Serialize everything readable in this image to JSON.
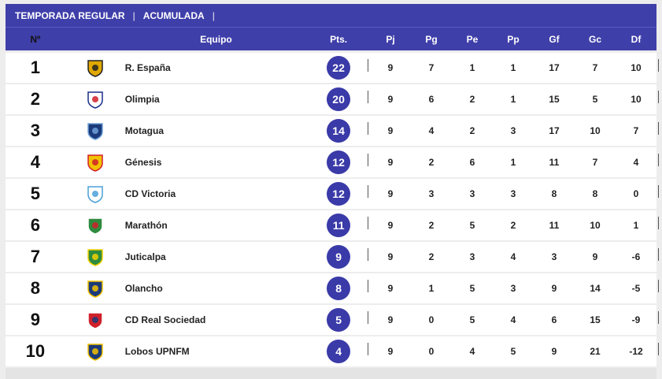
{
  "tabs": [
    "TEMPORADA REGULAR",
    "ACUMULADA"
  ],
  "columns": {
    "pos": "Nº",
    "team": "Equipo",
    "pts": "Pts.",
    "pj": "Pj",
    "pg": "Pg",
    "pe": "Pe",
    "pp": "Pp",
    "gf": "Gf",
    "gc": "Gc",
    "df": "Df"
  },
  "rows": [
    {
      "pos": "1",
      "team": "R. España",
      "logo": "real-espana-crest",
      "pts": "22",
      "pj": "9",
      "pg": "7",
      "pe": "1",
      "pp": "1",
      "gf": "17",
      "gc": "7",
      "df": "10"
    },
    {
      "pos": "2",
      "team": "Olimpia",
      "logo": "olimpia-crest",
      "pts": "20",
      "pj": "9",
      "pg": "6",
      "pe": "2",
      "pp": "1",
      "gf": "15",
      "gc": "5",
      "df": "10"
    },
    {
      "pos": "3",
      "team": "Motagua",
      "logo": "motagua-crest",
      "pts": "14",
      "pj": "9",
      "pg": "4",
      "pe": "2",
      "pp": "3",
      "gf": "17",
      "gc": "10",
      "df": "7"
    },
    {
      "pos": "4",
      "team": "Génesis",
      "logo": "genesis-crest",
      "pts": "12",
      "pj": "9",
      "pg": "2",
      "pe": "6",
      "pp": "1",
      "gf": "11",
      "gc": "7",
      "df": "4"
    },
    {
      "pos": "5",
      "team": "CD Victoria",
      "logo": "victoria-crest",
      "pts": "12",
      "pj": "9",
      "pg": "3",
      "pe": "3",
      "pp": "3",
      "gf": "8",
      "gc": "8",
      "df": "0"
    },
    {
      "pos": "6",
      "team": "Marathón",
      "logo": "marathon-crest",
      "pts": "11",
      "pj": "9",
      "pg": "2",
      "pe": "5",
      "pp": "2",
      "gf": "11",
      "gc": "10",
      "df": "1"
    },
    {
      "pos": "7",
      "team": "Juticalpa",
      "logo": "juticalpa-crest",
      "pts": "9",
      "pj": "9",
      "pg": "2",
      "pe": "3",
      "pp": "4",
      "gf": "3",
      "gc": "9",
      "df": "-6"
    },
    {
      "pos": "8",
      "team": "Olancho",
      "logo": "olancho-crest",
      "pts": "8",
      "pj": "9",
      "pg": "1",
      "pe": "5",
      "pp": "3",
      "gf": "9",
      "gc": "14",
      "df": "-5"
    },
    {
      "pos": "9",
      "team": "CD Real Sociedad",
      "logo": "real-sociedad-crest",
      "pts": "5",
      "pj": "9",
      "pg": "0",
      "pe": "5",
      "pp": "4",
      "gf": "6",
      "gc": "15",
      "df": "-9"
    },
    {
      "pos": "10",
      "team": "Lobos UPNFM",
      "logo": "lobos-crest",
      "pts": "4",
      "pj": "9",
      "pg": "0",
      "pe": "4",
      "pp": "5",
      "gf": "9",
      "gc": "21",
      "df": "-12"
    }
  ],
  "colors": {
    "header": "#3f3faa",
    "pill": "#3a3aa8"
  }
}
